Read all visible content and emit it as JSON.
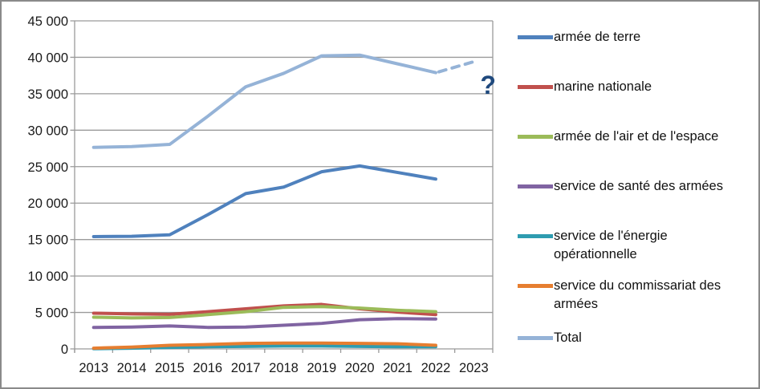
{
  "chart_data": {
    "type": "line",
    "title": "",
    "x_categories": [
      "2013",
      "2014",
      "2015",
      "2016",
      "2017",
      "2018",
      "2019",
      "2020",
      "2021",
      "2022",
      "2023"
    ],
    "y_axis": {
      "min": 0,
      "max": 45000,
      "step": 5000,
      "tick_labels": [
        "0",
        "5 000",
        "10 000",
        "15 000",
        "20 000",
        "25 000",
        "30 000",
        "35 000",
        "40 000",
        "45 000"
      ]
    },
    "grid": true,
    "legend_position": "right",
    "series": [
      {
        "name": "armée de terre",
        "color": "#4F81BD",
        "values": [
          15400,
          15450,
          15650,
          18400,
          21300,
          22200,
          24300,
          25100,
          24200,
          23300
        ]
      },
      {
        "name": "marine nationale",
        "color": "#C0504D",
        "values": [
          4900,
          4800,
          4750,
          5100,
          5500,
          5900,
          6100,
          5500,
          5050,
          4700
        ]
      },
      {
        "name": "armée de l'air et de l'espace",
        "color": "#9BBB59",
        "values": [
          4350,
          4250,
          4300,
          4700,
          5100,
          5700,
          5800,
          5600,
          5300,
          5100
        ]
      },
      {
        "name": "service de santé des armées",
        "color": "#8064A2",
        "values": [
          2950,
          3000,
          3150,
          2950,
          3000,
          3250,
          3500,
          4000,
          4150,
          4100
        ]
      },
      {
        "name": "service de l'énergie opérationnelle",
        "color": "#2E9CB0",
        "values": [
          30,
          100,
          200,
          300,
          350,
          400,
          400,
          350,
          300,
          300
        ]
      },
      {
        "name": "service du commissariat des armées",
        "color": "#E67E30",
        "values": [
          100,
          250,
          500,
          600,
          750,
          800,
          800,
          750,
          700,
          500
        ]
      },
      {
        "name": "Total",
        "color": "#95B3D7",
        "values": [
          27650,
          27750,
          28050,
          31900,
          35950,
          37800,
          40200,
          40300,
          39100,
          37900
        ],
        "projection": {
          "year": "2023",
          "value": 39400,
          "style": "dashed"
        }
      }
    ],
    "annotation": {
      "text": "?",
      "color": "#1F497D"
    }
  }
}
